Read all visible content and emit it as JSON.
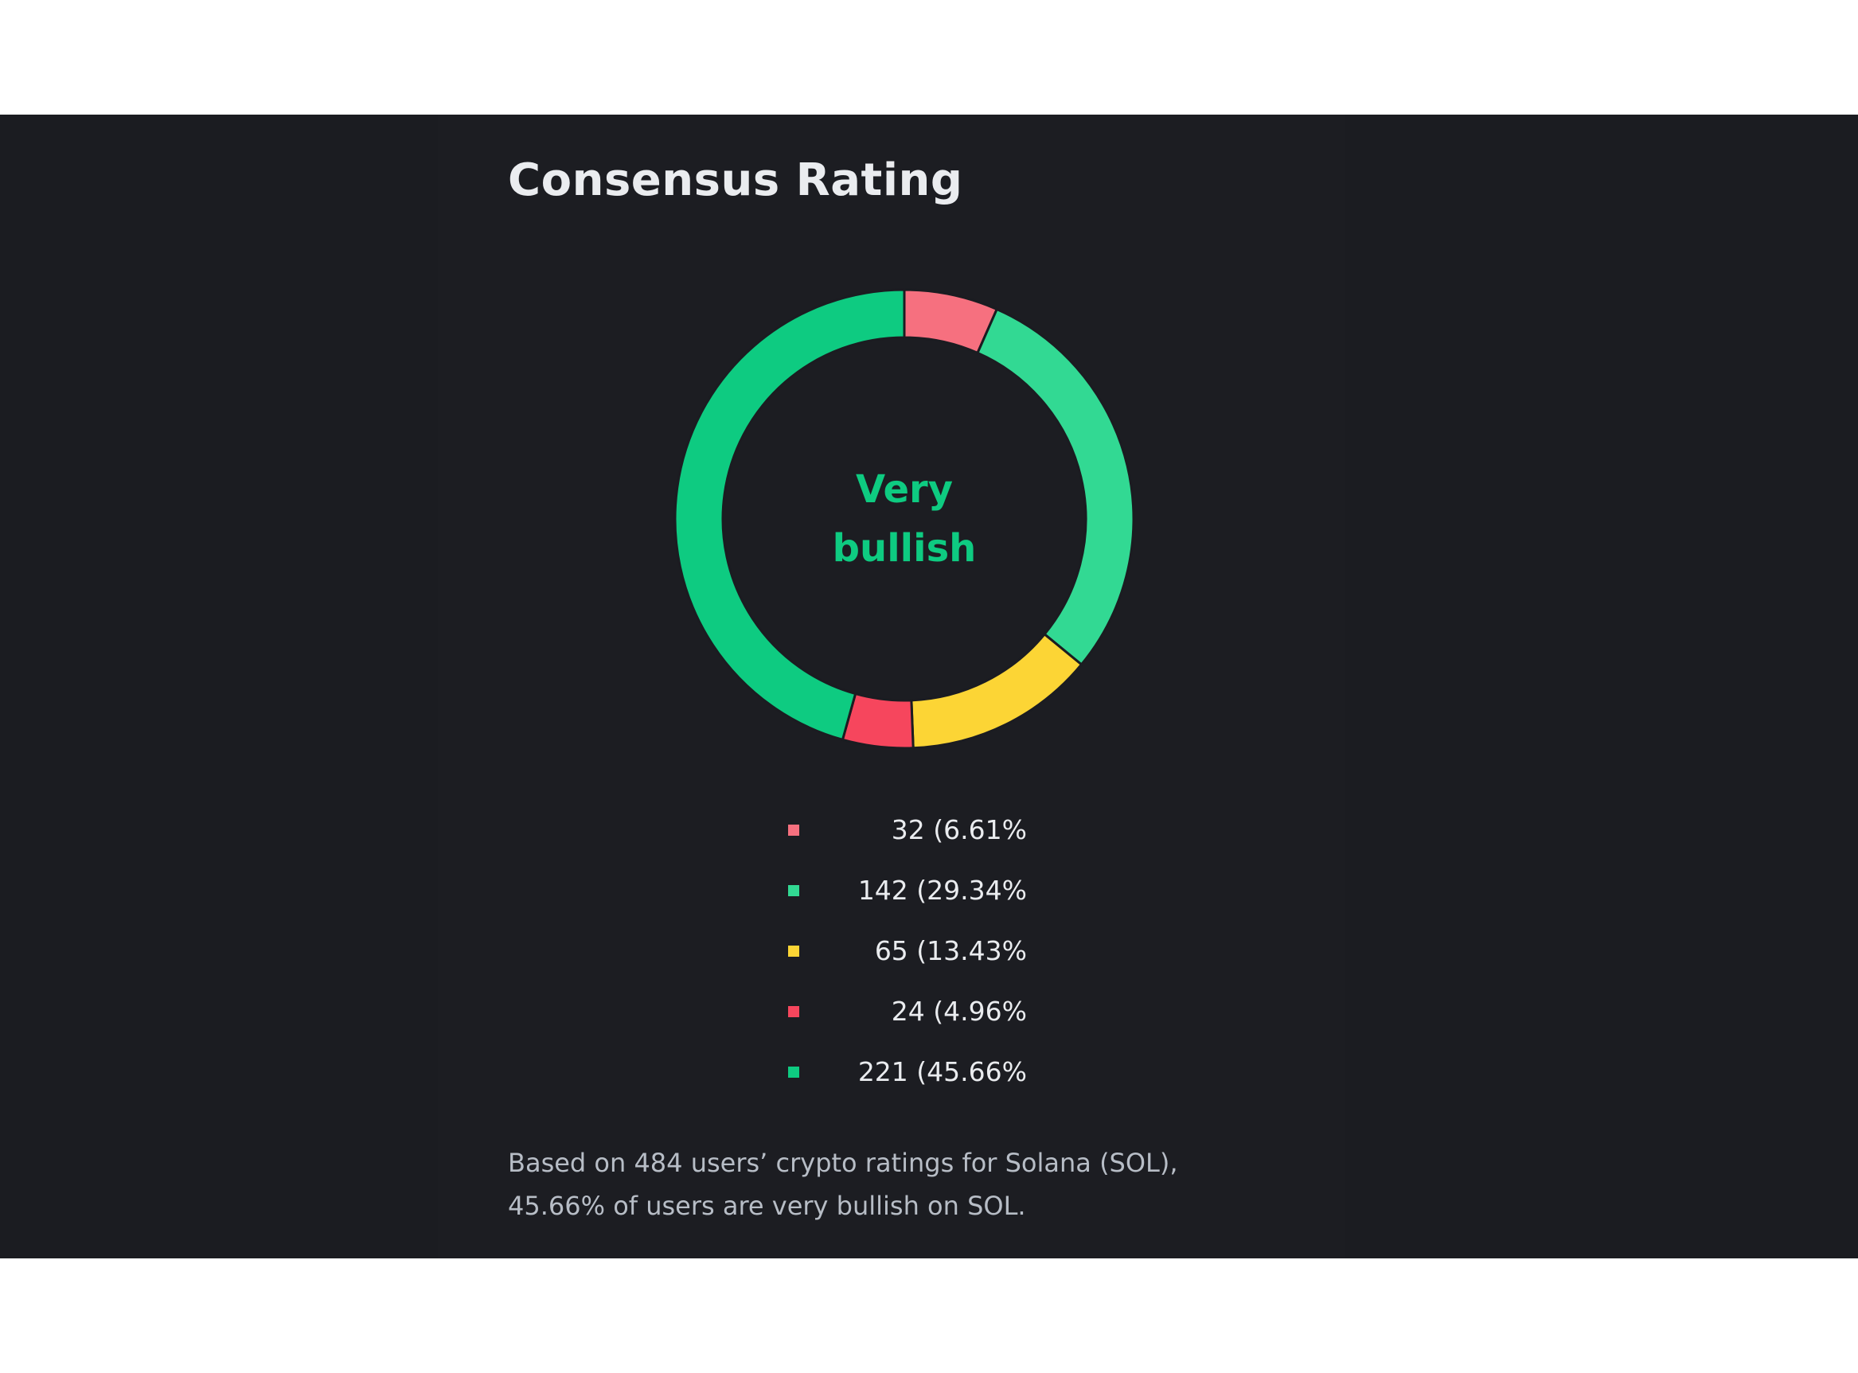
{
  "header": {
    "title": "Consensus Rating"
  },
  "chart_data": {
    "type": "pie",
    "title": "Consensus Rating",
    "center_label": [
      "Very",
      "bullish"
    ],
    "total": 484,
    "slices": [
      {
        "value": 32,
        "percent": 6.61,
        "color": "#f6707f",
        "label": "32 (6.61%"
      },
      {
        "value": 142,
        "percent": 29.34,
        "color": "#32d993",
        "label": "142 (29.34%"
      },
      {
        "value": 65,
        "percent": 13.43,
        "color": "#fcd535",
        "label": "65 (13.43%"
      },
      {
        "value": 24,
        "percent": 4.96,
        "color": "#f6465d",
        "label": "24 (4.96%"
      },
      {
        "value": 221,
        "percent": 45.66,
        "color": "#0ecb81",
        "label": "221 (45.66%"
      }
    ]
  },
  "footnote": {
    "line1": "Based on 484 users’ crypto ratings for Solana (SOL),",
    "line2": "45.66% of users are very bullish on SOL."
  },
  "colors": {
    "panel_bg": "#1b1c21",
    "accent": "#0ecb81",
    "text": "#eaecef",
    "muted": "#b7bdc6"
  }
}
